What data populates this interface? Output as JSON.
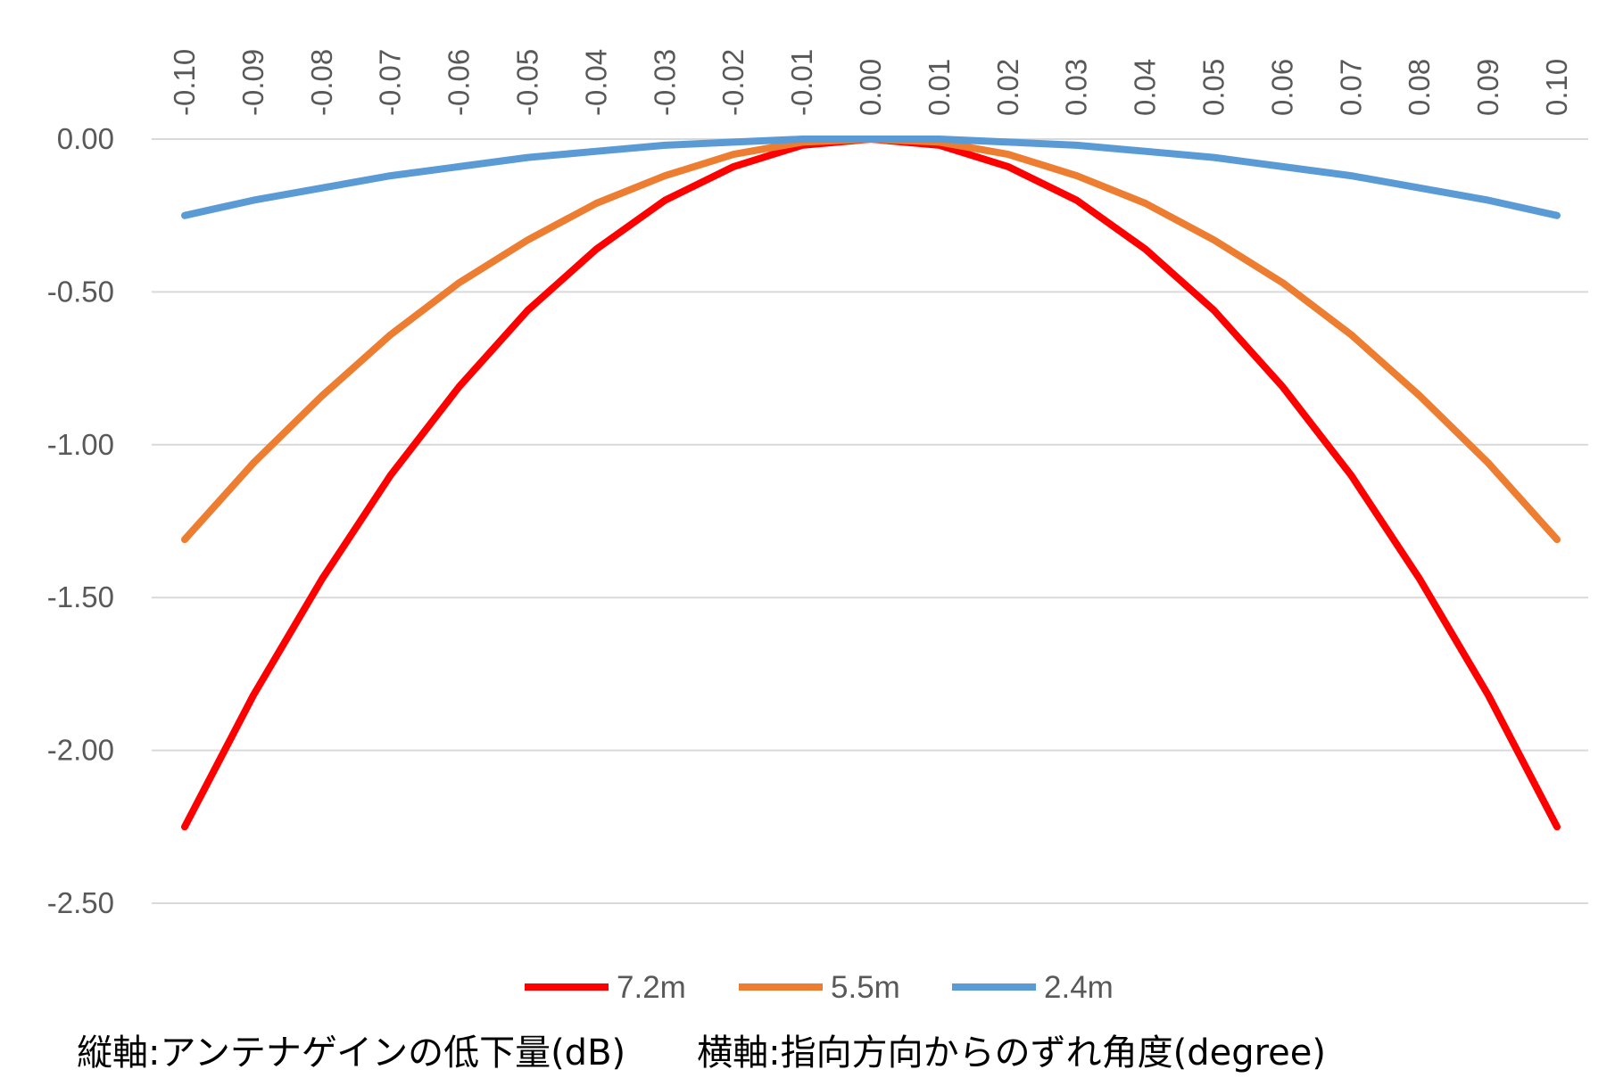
{
  "chart_data": {
    "type": "line",
    "x": [
      -0.1,
      -0.09,
      -0.08,
      -0.07,
      -0.06,
      -0.05,
      -0.04,
      -0.03,
      -0.02,
      -0.01,
      0.0,
      0.01,
      0.02,
      0.03,
      0.04,
      0.05,
      0.06,
      0.07,
      0.08,
      0.09,
      0.1
    ],
    "x_tick_labels": [
      "-0.10",
      "-0.09",
      "-0.08",
      "-0.07",
      "-0.06",
      "-0.05",
      "-0.04",
      "-0.03",
      "-0.02",
      "-0.01",
      "0.00",
      "0.01",
      "0.02",
      "0.03",
      "0.04",
      "0.05",
      "0.06",
      "0.07",
      "0.08",
      "0.09",
      "0.10"
    ],
    "x_axis_position": "top",
    "y_ticks": [
      0.0,
      -0.5,
      -1.0,
      -1.5,
      -2.0,
      -2.5
    ],
    "y_tick_labels": [
      "0.00",
      "-0.50",
      "-1.00",
      "-1.50",
      "-2.00",
      "-2.50"
    ],
    "ylim": [
      -2.5,
      0.0
    ],
    "grid": "horizontal",
    "legend_position": "bottom",
    "series": [
      {
        "name": "7.2m",
        "color": "#ff0000",
        "values": [
          -2.25,
          -1.82,
          -1.44,
          -1.1,
          -0.81,
          -0.56,
          -0.36,
          -0.2,
          -0.09,
          -0.02,
          0.0,
          -0.02,
          -0.09,
          -0.2,
          -0.36,
          -0.56,
          -0.81,
          -1.1,
          -1.44,
          -1.82,
          -2.25
        ]
      },
      {
        "name": "5.5m",
        "color": "#ed7d31",
        "values": [
          -1.31,
          -1.06,
          -0.84,
          -0.64,
          -0.47,
          -0.33,
          -0.21,
          -0.12,
          -0.05,
          -0.01,
          0.0,
          -0.01,
          -0.05,
          -0.12,
          -0.21,
          -0.33,
          -0.47,
          -0.64,
          -0.84,
          -1.06,
          -1.31
        ]
      },
      {
        "name": "2.4m",
        "color": "#5b9bd5",
        "values": [
          -0.25,
          -0.2,
          -0.16,
          -0.12,
          -0.09,
          -0.06,
          -0.04,
          -0.02,
          -0.01,
          0.0,
          0.0,
          0.0,
          -0.01,
          -0.02,
          -0.04,
          -0.06,
          -0.09,
          -0.12,
          -0.16,
          -0.2,
          -0.25
        ]
      }
    ]
  },
  "caption": "縦軸:アンテナゲインの低下量(dB)　　横軸:指向方向からのずれ角度(degree)",
  "colors": {
    "grid": "#d9d9d9",
    "tick_text": "#595959"
  }
}
